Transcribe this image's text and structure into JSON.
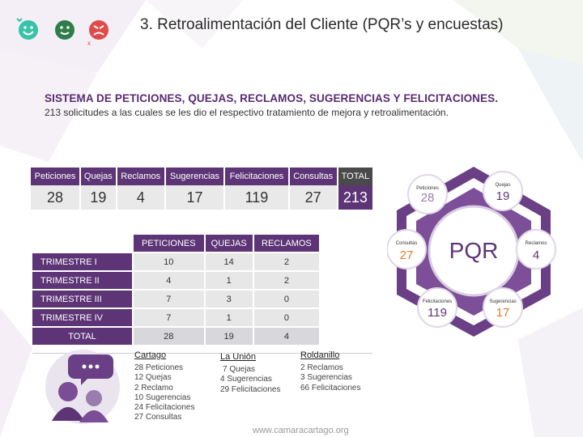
{
  "colors": {
    "purple": "#5d3576",
    "dark": "#4a4a4a",
    "light_gray": "#e9e9ea"
  },
  "title": "3. Retroalimentación del Cliente (PQR’s y encuestas)",
  "heading": "SISTEMA DE PETICIONES, QUEJAS, RECLAMOS, SUGERENCIAS Y FELICITACIONES.",
  "subheading": "213 solicitudes a las cuales se les dio el respectivo tratamiento de mejora y retroalimentación.",
  "summary": {
    "headers": [
      "Peticiones",
      "Quejas",
      "Reclamos",
      "Sugerencias",
      "Felicitaciones",
      "Consultas",
      "TOTAL"
    ],
    "values": [
      "28",
      "19",
      "4",
      "17",
      "119",
      "27",
      "213"
    ]
  },
  "quarterly": {
    "headers": [
      "PETICIONES",
      "QUEJAS",
      "RECLAMOS"
    ],
    "rows": [
      {
        "label": "TRIMESTRE I",
        "values": [
          "10",
          "14",
          "2"
        ]
      },
      {
        "label": "TRIMESTRE II",
        "values": [
          "4",
          "1",
          "2"
        ]
      },
      {
        "label": "TRIMESTRE III",
        "values": [
          "7",
          "3",
          "0"
        ]
      },
      {
        "label": "TRIMESTRE IV",
        "values": [
          "7",
          "1",
          "0"
        ]
      }
    ],
    "total": {
      "label": "TOTAL",
      "values": [
        "28",
        "19",
        "4"
      ]
    }
  },
  "hexagon": {
    "center": "PQR",
    "nodes": [
      {
        "label": "Peticiones",
        "value": "28"
      },
      {
        "label": "Quejas",
        "value": "19"
      },
      {
        "label": "Reclamos",
        "value": "4"
      },
      {
        "label": "Sugerencias",
        "value": "17"
      },
      {
        "label": "Felicitaciones",
        "value": "119"
      },
      {
        "label": "Consultas",
        "value": "27"
      }
    ]
  },
  "cities": [
    {
      "name": "Cartago",
      "lines": [
        "28 Peticiones",
        "12 Quejas",
        "2 Reclamo",
        "10 Sugerencias",
        "24 Felicitaciones",
        "27 Consultas"
      ]
    },
    {
      "name": "La Unión",
      "lines": [
        "7 Quejas",
        "4  Sugerencias",
        "29 Felicitaciones"
      ]
    },
    {
      "name": "Roldanillo",
      "lines": [
        "2 Reclamos",
        "3 Sugerencias",
        "66 Felicitaciones"
      ]
    }
  ],
  "footer": "www.camaracartago.org",
  "icons": [
    "happy-face-icon",
    "neutral-face-icon",
    "angry-face-icon",
    "people-chat-icon"
  ]
}
